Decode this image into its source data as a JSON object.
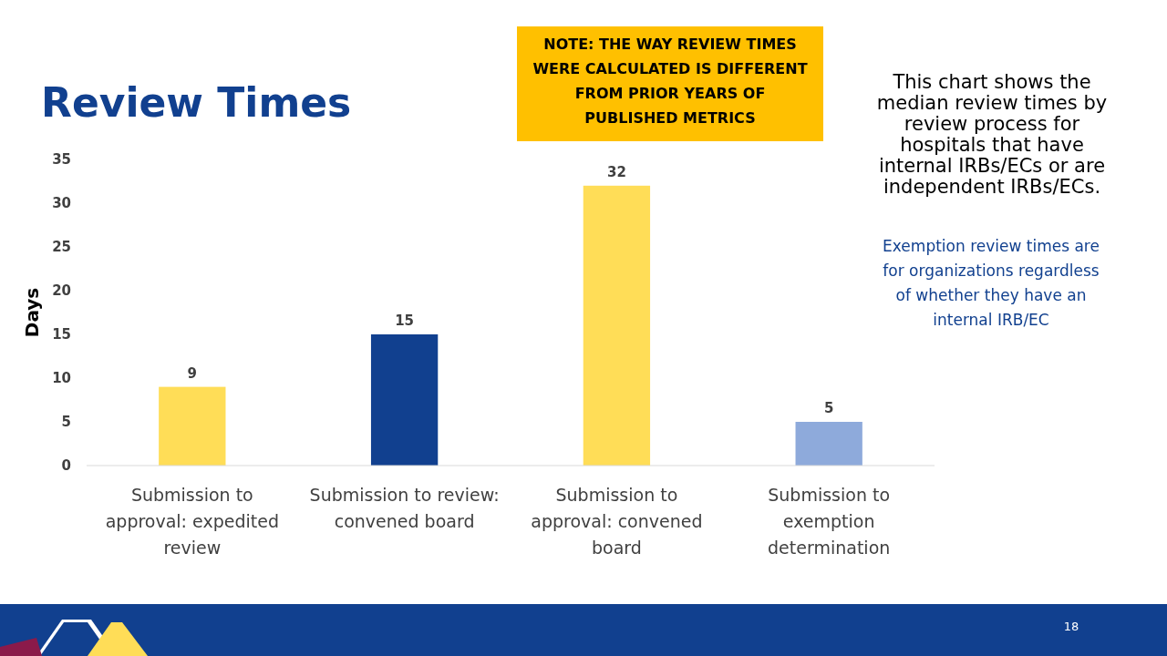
{
  "chart_data": {
    "type": "bar",
    "title": "Review Times",
    "ylabel": "Days",
    "categories": [
      "Submission to approval: expedited review",
      "Submission to review: convened board",
      "Submission to approval: convened board",
      "Submission to exemption determination"
    ],
    "values": [
      9,
      15,
      32,
      5
    ],
    "colors": [
      "#ffdd57",
      "#11408f",
      "#ffdd57",
      "#8eaadb"
    ],
    "ylim": [
      0,
      35
    ],
    "yticks": [
      0,
      5,
      10,
      15,
      20,
      25,
      30,
      35
    ],
    "grid": false,
    "data_labels": true,
    "annotations": [
      "NOTE: THE WAY REVIEW TIMES WERE CALCULATED  IS DIFFERENT FROM PRIOR YEARS OF PUBLISHED METRICS",
      "This chart shows the median review times by review process for hospitals that have internal IRBs/ECs or are independent IRBs/ECs.",
      "Exemption review times are for organizations regardless of whether they have an internal IRB/EC",
      "18"
    ]
  }
}
